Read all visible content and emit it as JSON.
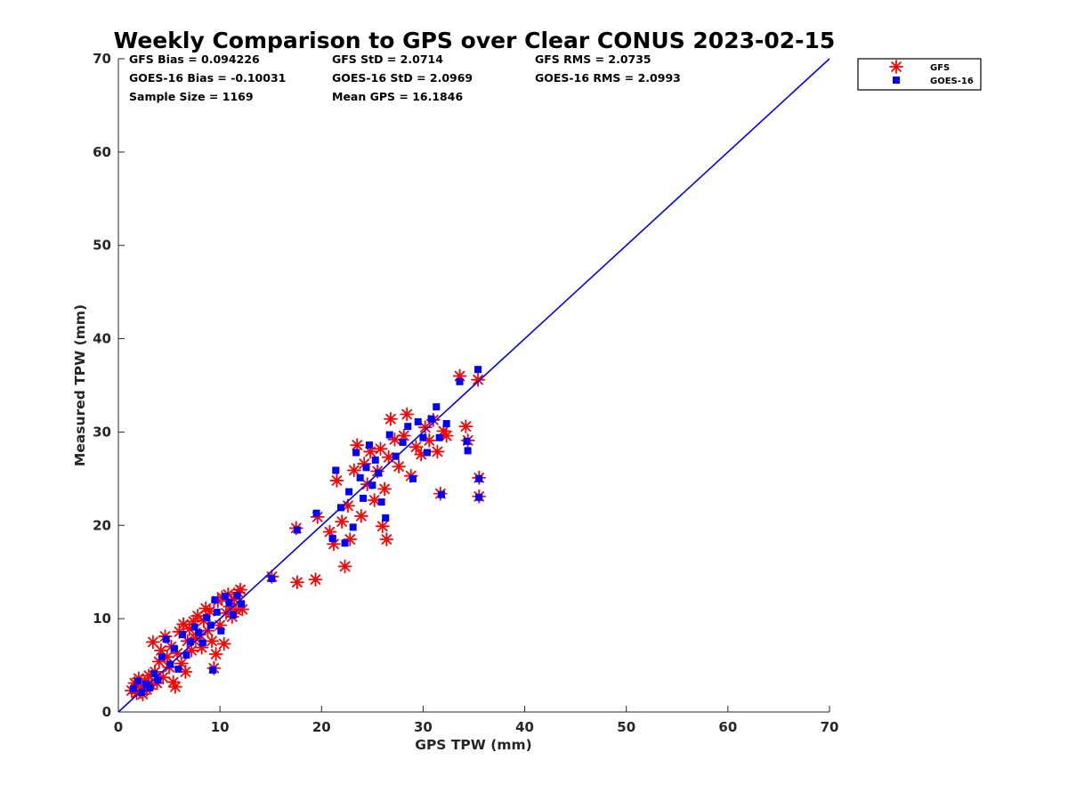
{
  "chart_data": {
    "type": "scatter",
    "title": "Weekly Comparison to GPS over Clear CONUS 2023-02-15",
    "xlabel": "GPS TPW (mm)",
    "ylabel": "Measured TPW (mm)",
    "xlim": [
      0,
      70
    ],
    "ylim": [
      0,
      70
    ],
    "xticks": [
      "0",
      "10",
      "20",
      "30",
      "40",
      "50",
      "60",
      "70"
    ],
    "yticks": [
      "0",
      "10",
      "20",
      "30",
      "40",
      "50",
      "60",
      "70"
    ],
    "grid": false,
    "legend_position": "outside-top-right",
    "reference_line": {
      "x": [
        0,
        70
      ],
      "y": [
        0,
        70
      ],
      "color": "#0000ff"
    },
    "stats": [
      [
        "GFS Bias = 0.094226",
        "GFS StD = 2.0714",
        "GFS RMS = 2.0735"
      ],
      [
        "GOES-16 Bias = -0.10031",
        "GOES-16 StD = 2.0969",
        "GOES-16 RMS = 2.0993"
      ],
      [
        "Sample Size = 1169",
        "Mean GPS = 16.1846",
        ""
      ]
    ],
    "series": [
      {
        "name": "GFS",
        "marker": "asterisk",
        "color": "#ff0000",
        "points": [
          [
            1.3,
            2.3
          ],
          [
            1.6,
            3.1
          ],
          [
            1.8,
            2.0
          ],
          [
            2.0,
            3.6
          ],
          [
            2.2,
            2.6
          ],
          [
            2.4,
            1.9
          ],
          [
            2.6,
            3.2
          ],
          [
            2.8,
            2.4
          ],
          [
            3.0,
            3.9
          ],
          [
            3.2,
            2.9
          ],
          [
            3.4,
            7.5
          ],
          [
            3.6,
            4.3
          ],
          [
            3.8,
            3.1
          ],
          [
            4.0,
            5.4
          ],
          [
            4.2,
            6.6
          ],
          [
            4.4,
            3.7
          ],
          [
            4.6,
            8.1
          ],
          [
            4.8,
            5.9
          ],
          [
            5.0,
            4.8
          ],
          [
            5.2,
            7.0
          ],
          [
            5.4,
            3.2
          ],
          [
            5.6,
            2.7
          ],
          [
            5.8,
            6.3
          ],
          [
            6.0,
            8.6
          ],
          [
            6.2,
            5.2
          ],
          [
            6.4,
            9.4
          ],
          [
            6.6,
            4.3
          ],
          [
            6.8,
            7.6
          ],
          [
            7.0,
            8.9
          ],
          [
            7.2,
            6.6
          ],
          [
            7.4,
            9.7
          ],
          [
            7.6,
            7.9
          ],
          [
            7.8,
            10.3
          ],
          [
            8.0,
            8.3
          ],
          [
            8.2,
            6.9
          ],
          [
            8.4,
            9.8
          ],
          [
            8.6,
            11.1
          ],
          [
            8.8,
            8.7
          ],
          [
            9.0,
            10.8
          ],
          [
            9.2,
            7.6
          ],
          [
            9.4,
            4.7
          ],
          [
            9.6,
            6.2
          ],
          [
            9.8,
            11.9
          ],
          [
            10.0,
            9.3
          ],
          [
            10.2,
            12.3
          ],
          [
            10.4,
            7.3
          ],
          [
            10.6,
            10.6
          ],
          [
            10.8,
            12.6
          ],
          [
            11.0,
            11.3
          ],
          [
            11.2,
            10.2
          ],
          [
            11.4,
            12.1
          ],
          [
            11.6,
            10.9
          ],
          [
            11.8,
            12.8
          ],
          [
            12.0,
            13.1
          ],
          [
            12.2,
            11.0
          ],
          [
            15.1,
            14.5
          ],
          [
            17.5,
            19.7
          ],
          [
            17.6,
            13.9
          ],
          [
            19.4,
            14.2
          ],
          [
            19.6,
            20.9
          ],
          [
            20.8,
            19.3
          ],
          [
            21.2,
            18.0
          ],
          [
            21.5,
            24.8
          ],
          [
            22.0,
            20.4
          ],
          [
            22.3,
            15.6
          ],
          [
            22.6,
            22.1
          ],
          [
            22.8,
            18.5
          ],
          [
            23.2,
            25.9
          ],
          [
            23.5,
            28.6
          ],
          [
            23.9,
            21.0
          ],
          [
            24.2,
            26.6
          ],
          [
            24.5,
            24.4
          ],
          [
            24.8,
            27.9
          ],
          [
            25.2,
            22.7
          ],
          [
            25.5,
            25.8
          ],
          [
            25.8,
            28.2
          ],
          [
            26.0,
            19.9
          ],
          [
            26.2,
            23.9
          ],
          [
            26.4,
            18.5
          ],
          [
            26.6,
            27.3
          ],
          [
            26.8,
            31.4
          ],
          [
            27.2,
            29.2
          ],
          [
            27.6,
            26.3
          ],
          [
            28.1,
            29.6
          ],
          [
            28.4,
            31.9
          ],
          [
            28.8,
            25.3
          ],
          [
            29.3,
            28.4
          ],
          [
            29.8,
            27.6
          ],
          [
            30.2,
            30.5
          ],
          [
            30.6,
            29.1
          ],
          [
            31.0,
            31.3
          ],
          [
            31.4,
            27.9
          ],
          [
            31.7,
            23.4
          ],
          [
            32.0,
            30.1
          ],
          [
            32.3,
            29.6
          ],
          [
            33.6,
            36.0
          ],
          [
            34.2,
            30.6
          ],
          [
            34.4,
            29.1
          ],
          [
            35.4,
            35.6
          ],
          [
            35.5,
            25.1
          ],
          [
            35.5,
            23.1
          ]
        ]
      },
      {
        "name": "GOES-16",
        "marker": "square",
        "color": "#0000ff",
        "points": [
          [
            1.5,
            2.5
          ],
          [
            1.9,
            3.3
          ],
          [
            2.3,
            2.1
          ],
          [
            2.7,
            3.0
          ],
          [
            3.1,
            2.6
          ],
          [
            3.5,
            4.1
          ],
          [
            3.9,
            3.4
          ],
          [
            4.3,
            5.9
          ],
          [
            4.7,
            7.8
          ],
          [
            5.1,
            5.1
          ],
          [
            5.5,
            6.8
          ],
          [
            5.9,
            4.6
          ],
          [
            6.3,
            8.3
          ],
          [
            6.7,
            6.1
          ],
          [
            7.1,
            7.5
          ],
          [
            7.5,
            9.1
          ],
          [
            7.9,
            8.5
          ],
          [
            8.3,
            7.4
          ],
          [
            8.7,
            10.1
          ],
          [
            9.1,
            9.3
          ],
          [
            9.3,
            4.5
          ],
          [
            9.5,
            12.0
          ],
          [
            9.7,
            10.7
          ],
          [
            10.1,
            8.7
          ],
          [
            10.5,
            12.4
          ],
          [
            10.9,
            11.7
          ],
          [
            11.3,
            10.4
          ],
          [
            11.7,
            12.5
          ],
          [
            12.1,
            11.6
          ],
          [
            15.1,
            14.3
          ],
          [
            17.6,
            19.5
          ],
          [
            19.5,
            21.3
          ],
          [
            21.1,
            18.6
          ],
          [
            21.4,
            25.9
          ],
          [
            21.9,
            21.9
          ],
          [
            22.3,
            18.1
          ],
          [
            22.7,
            23.6
          ],
          [
            23.1,
            19.8
          ],
          [
            23.4,
            27.8
          ],
          [
            23.8,
            25.1
          ],
          [
            24.1,
            22.9
          ],
          [
            24.4,
            26.2
          ],
          [
            24.7,
            28.6
          ],
          [
            25.0,
            24.3
          ],
          [
            25.3,
            27.0
          ],
          [
            25.6,
            25.6
          ],
          [
            25.9,
            22.5
          ],
          [
            26.3,
            20.8
          ],
          [
            26.7,
            29.7
          ],
          [
            27.3,
            27.4
          ],
          [
            28.0,
            28.9
          ],
          [
            28.5,
            30.6
          ],
          [
            29.0,
            25.0
          ],
          [
            29.5,
            31.1
          ],
          [
            30.0,
            29.4
          ],
          [
            30.4,
            27.8
          ],
          [
            30.8,
            31.4
          ],
          [
            31.3,
            32.7
          ],
          [
            31.6,
            29.4
          ],
          [
            31.8,
            23.3
          ],
          [
            32.3,
            30.9
          ],
          [
            33.6,
            35.4
          ],
          [
            34.3,
            29.0
          ],
          [
            34.4,
            28.0
          ],
          [
            35.4,
            36.7
          ],
          [
            35.5,
            25.0
          ],
          [
            35.5,
            23.0
          ]
        ]
      }
    ]
  }
}
